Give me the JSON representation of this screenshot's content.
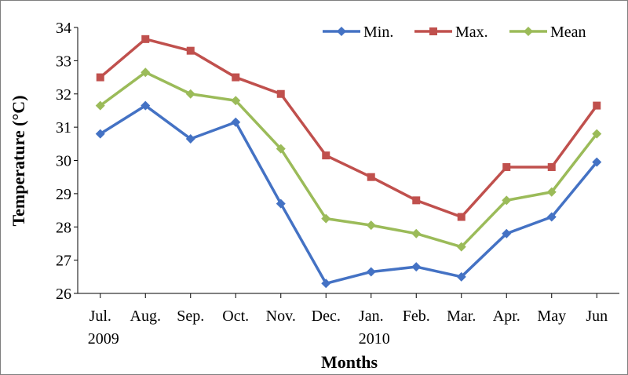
{
  "chart_data": {
    "type": "line",
    "xlabel": "Months",
    "ylabel": "Temperature (°C)",
    "categories": [
      "Jul.",
      "Aug.",
      "Sep.",
      "Oct.",
      "Nov.",
      "Dec.",
      "Jan.",
      "Feb.",
      "Mar.",
      "Apr.",
      "May",
      "Jun"
    ],
    "year_labels": [
      {
        "text": "2009",
        "category_index": 0
      },
      {
        "text": "2010",
        "category_index": 6
      }
    ],
    "ylim": [
      26,
      34
    ],
    "yticks": [
      26,
      27,
      28,
      29,
      30,
      31,
      32,
      33,
      34
    ],
    "grid": false,
    "legend_position": "top-right",
    "series": [
      {
        "name": "Min.",
        "color": "#4472C4",
        "marker": "diamond",
        "values": [
          30.8,
          31.65,
          30.65,
          31.15,
          28.7,
          26.3,
          26.65,
          26.8,
          26.5,
          27.8,
          28.3,
          29.95
        ]
      },
      {
        "name": "Max.",
        "color": "#C0504D",
        "marker": "square",
        "values": [
          32.5,
          33.65,
          33.3,
          32.5,
          32.0,
          30.15,
          29.5,
          28.8,
          28.3,
          29.8,
          29.8,
          31.65
        ]
      },
      {
        "name": "Mean",
        "color": "#9BBB59",
        "marker": "diamond",
        "values": [
          31.65,
          32.65,
          32.0,
          31.8,
          30.35,
          28.25,
          28.05,
          27.8,
          27.4,
          28.8,
          29.05,
          30.8
        ]
      }
    ]
  }
}
